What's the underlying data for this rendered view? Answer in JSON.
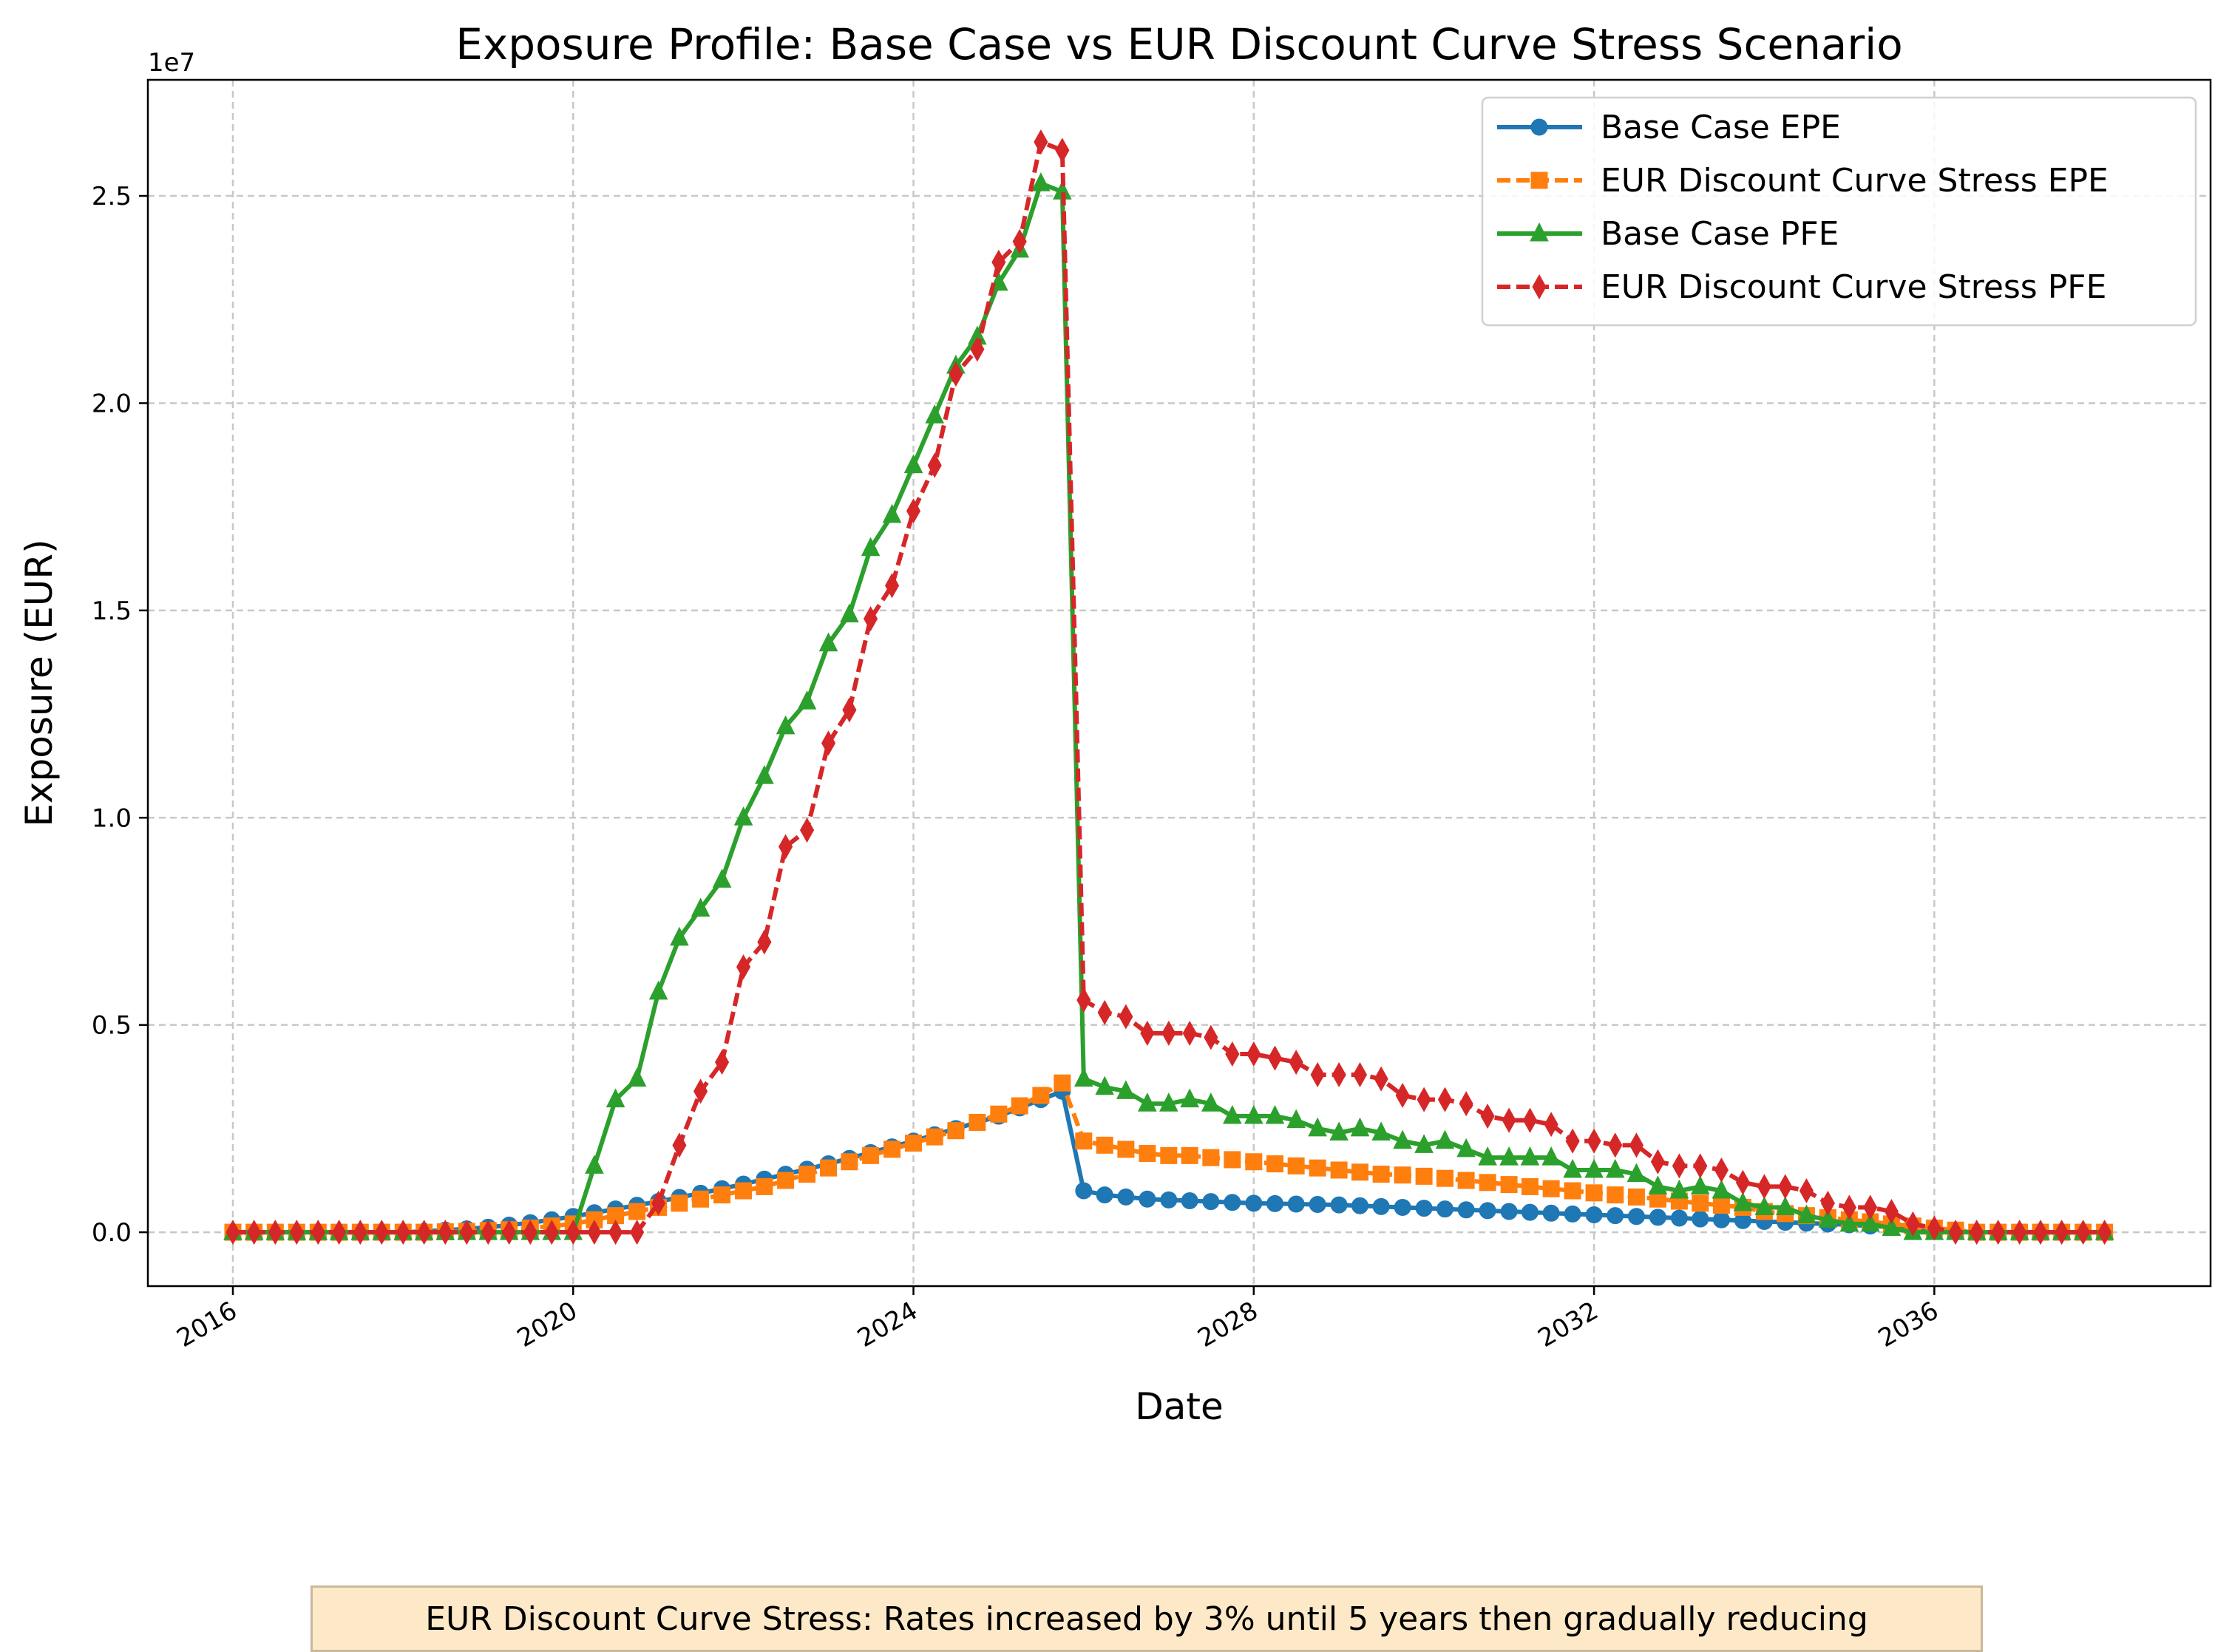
{
  "chart_data": {
    "type": "line",
    "title": "Exposure Profile: Base Case vs EUR Discount Curve Stress Scenario",
    "xlabel": "Date",
    "ylabel": "Exposure (EUR)",
    "y_offset_text": "1e7",
    "y_scale": 10000000,
    "x_ticks": [
      "2016",
      "2020",
      "2024",
      "2028",
      "2032",
      "2036"
    ],
    "y_ticks": [
      "0.0",
      "0.5",
      "1.0",
      "1.5",
      "2.0",
      "2.5"
    ],
    "xlim": [
      "2015-01-01",
      "2039-04-01"
    ],
    "ylim": [
      -1300000,
      27800000
    ],
    "grid": true,
    "legend_position": "top-right",
    "annotation": "EUR Discount Curve Stress: Rates increased by 3% until 5 years then gradually reducing",
    "dates": [
      "2016-01",
      "2016-04",
      "2016-07",
      "2016-10",
      "2017-01",
      "2017-04",
      "2017-07",
      "2017-10",
      "2018-01",
      "2018-04",
      "2018-07",
      "2018-10",
      "2019-01",
      "2019-04",
      "2019-07",
      "2019-10",
      "2020-01",
      "2020-04",
      "2020-07",
      "2020-10",
      "2021-01",
      "2021-04",
      "2021-07",
      "2021-10",
      "2022-01",
      "2022-04",
      "2022-07",
      "2022-10",
      "2023-01",
      "2023-04",
      "2023-07",
      "2023-10",
      "2024-01",
      "2024-04",
      "2024-07",
      "2024-10",
      "2025-01",
      "2025-04",
      "2025-07",
      "2025-10",
      "2026-01",
      "2026-04",
      "2026-07",
      "2026-10",
      "2027-01",
      "2027-04",
      "2027-07",
      "2027-10",
      "2028-01",
      "2028-04",
      "2028-07",
      "2028-10",
      "2029-01",
      "2029-04",
      "2029-07",
      "2029-10",
      "2030-01",
      "2030-04",
      "2030-07",
      "2030-10",
      "2031-01",
      "2031-04",
      "2031-07",
      "2031-10",
      "2032-01",
      "2032-04",
      "2032-07",
      "2032-10",
      "2033-01",
      "2033-04",
      "2033-07",
      "2033-10",
      "2034-01",
      "2034-04",
      "2034-07",
      "2034-10",
      "2035-01",
      "2035-04",
      "2035-07",
      "2035-10",
      "2036-01",
      "2036-04",
      "2036-07",
      "2036-10",
      "2037-01",
      "2037-04",
      "2037-07",
      "2037-10",
      "2038-01"
    ],
    "series": [
      {
        "name": "Base Case EPE",
        "color": "#1f77b4",
        "marker": "circle",
        "dashed": false,
        "values": [
          0,
          0,
          0,
          0,
          0,
          0,
          0,
          0,
          0,
          20000,
          50000,
          80000,
          120000,
          170000,
          230000,
          300000,
          380000,
          470000,
          560000,
          650000,
          740000,
          840000,
          940000,
          1050000,
          1160000,
          1280000,
          1400000,
          1520000,
          1650000,
          1780000,
          1920000,
          2060000,
          2200000,
          2350000,
          2500000,
          2650000,
          2800000,
          3000000,
          3200000,
          3400000,
          1000000,
          900000,
          850000,
          800000,
          780000,
          760000,
          740000,
          720000,
          700000,
          690000,
          680000,
          670000,
          660000,
          640000,
          620000,
          600000,
          580000,
          560000,
          540000,
          520000,
          500000,
          480000,
          460000,
          440000,
          420000,
          400000,
          380000,
          360000,
          340000,
          320000,
          300000,
          280000,
          260000,
          240000,
          220000,
          200000,
          180000,
          150000,
          130000,
          100000,
          50000,
          20000,
          0,
          0,
          0,
          0,
          0,
          0,
          0
        ]
      },
      {
        "name": "EUR Discount Curve Stress EPE",
        "color": "#ff7f0e",
        "marker": "square",
        "dashed": true,
        "values": [
          0,
          0,
          0,
          0,
          0,
          0,
          0,
          0,
          0,
          0,
          10000,
          20000,
          40000,
          60000,
          100000,
          150000,
          200000,
          300000,
          400000,
          500000,
          600000,
          700000,
          800000,
          900000,
          1000000,
          1100000,
          1250000,
          1400000,
          1550000,
          1700000,
          1850000,
          2000000,
          2150000,
          2300000,
          2450000,
          2650000,
          2850000,
          3050000,
          3300000,
          3600000,
          2200000,
          2100000,
          2000000,
          1900000,
          1850000,
          1850000,
          1800000,
          1750000,
          1700000,
          1650000,
          1600000,
          1550000,
          1500000,
          1450000,
          1400000,
          1380000,
          1350000,
          1300000,
          1250000,
          1200000,
          1150000,
          1100000,
          1050000,
          1000000,
          950000,
          900000,
          850000,
          800000,
          750000,
          700000,
          650000,
          600000,
          500000,
          450000,
          400000,
          350000,
          300000,
          250000,
          200000,
          150000,
          100000,
          50000,
          0,
          0,
          0,
          0,
          0,
          0,
          0
        ]
      },
      {
        "name": "Base Case PFE",
        "color": "#2ca02c",
        "marker": "triangle",
        "dashed": false,
        "values": [
          0,
          0,
          0,
          0,
          0,
          0,
          0,
          0,
          0,
          0,
          0,
          0,
          0,
          0,
          0,
          0,
          0,
          1600000,
          3200000,
          3700000,
          5800000,
          7100000,
          7800000,
          8500000,
          10000000,
          11000000,
          12200000,
          12800000,
          14200000,
          14900000,
          16500000,
          17300000,
          18500000,
          19700000,
          20900000,
          21600000,
          22900000,
          23700000,
          25300000,
          25100000,
          3700000,
          3500000,
          3400000,
          3100000,
          3100000,
          3200000,
          3100000,
          2800000,
          2800000,
          2800000,
          2700000,
          2500000,
          2400000,
          2500000,
          2400000,
          2200000,
          2100000,
          2200000,
          2000000,
          1800000,
          1800000,
          1800000,
          1800000,
          1500000,
          1500000,
          1500000,
          1400000,
          1100000,
          1000000,
          1100000,
          1000000,
          700000,
          600000,
          600000,
          400000,
          300000,
          200000,
          200000,
          100000,
          0,
          0,
          0,
          0,
          0,
          0,
          0,
          0,
          0,
          0
        ]
      },
      {
        "name": "EUR Discount Curve Stress PFE",
        "color": "#d62728",
        "marker": "diamond",
        "dashed": true,
        "values": [
          0,
          0,
          0,
          0,
          0,
          0,
          0,
          0,
          0,
          0,
          0,
          0,
          0,
          0,
          0,
          0,
          0,
          0,
          0,
          0,
          700000,
          2100000,
          3400000,
          4100000,
          6400000,
          7000000,
          9300000,
          9700000,
          11800000,
          12600000,
          14800000,
          15600000,
          17400000,
          18500000,
          20700000,
          21300000,
          23400000,
          23900000,
          26300000,
          26100000,
          5600000,
          5300000,
          5200000,
          4800000,
          4800000,
          4800000,
          4700000,
          4300000,
          4300000,
          4200000,
          4100000,
          3800000,
          3800000,
          3800000,
          3700000,
          3300000,
          3200000,
          3200000,
          3100000,
          2800000,
          2700000,
          2700000,
          2600000,
          2200000,
          2200000,
          2100000,
          2100000,
          1700000,
          1600000,
          1600000,
          1500000,
          1200000,
          1100000,
          1100000,
          1000000,
          700000,
          600000,
          600000,
          500000,
          200000,
          100000,
          0,
          0,
          0,
          0,
          0,
          0,
          0,
          0
        ]
      }
    ]
  }
}
